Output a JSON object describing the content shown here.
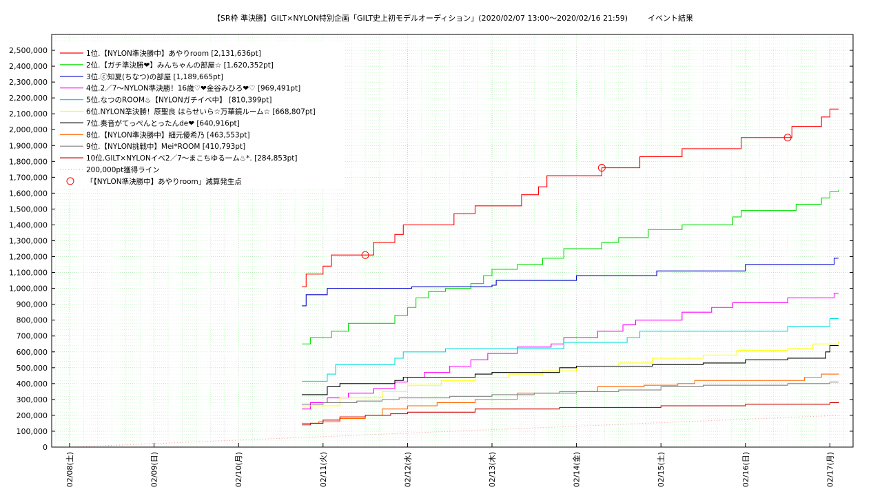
{
  "chart_data": {
    "type": "line",
    "title": "【SR枠 準決勝】GILT×NYLON特別企画「GILT史上初モデルオーディション」(2020/02/07 13:00〜2020/02/16 21:59)",
    "subtitle": "イベント結果",
    "xlabel": "",
    "ylabel": "",
    "x_ticks": [
      "02/08(土)",
      "02/09(日)",
      "02/10(月)",
      "02/11(火)",
      "02/12(水)",
      "02/13(木)",
      "02/14(金)",
      "02/15(土)",
      "02/16(日)",
      "02/17(月)"
    ],
    "xlim": [
      "2020-02-07 13:00",
      "2020-02-17 00:00"
    ],
    "ylim": [
      0,
      2600000
    ],
    "y_ticks": [
      "0",
      "100,000",
      "200,000",
      "300,000",
      "400,000",
      "500,000",
      "600,000",
      "700,000",
      "800,000",
      "900,000",
      "1,000,000",
      "1,100,000",
      "1,200,000",
      "1,300,000",
      "1,400,000",
      "1,500,000",
      "1,600,000",
      "1,700,000",
      "1,800,000",
      "1,900,000",
      "2,000,000",
      "2,100,000",
      "2,200,000",
      "2,300,000",
      "2,400,000",
      "2,500,000"
    ],
    "grid": true,
    "legend_position": "top-left",
    "series": [
      {
        "name": "1位.【NYLON準決勝中】あやりroom [2,131,636pt]",
        "color": "#ff0000",
        "points": [
          [
            2.75,
            1010000
          ],
          [
            2.8,
            1090000
          ],
          [
            3.0,
            1140000
          ],
          [
            3.1,
            1210000
          ],
          [
            3.5,
            1210000
          ],
          [
            3.6,
            1290000
          ],
          [
            3.85,
            1340000
          ],
          [
            3.95,
            1400000
          ],
          [
            4.5,
            1400000
          ],
          [
            4.55,
            1470000
          ],
          [
            4.75,
            1470000
          ],
          [
            4.8,
            1520000
          ],
          [
            5.3,
            1520000
          ],
          [
            5.35,
            1590000
          ],
          [
            5.55,
            1640000
          ],
          [
            5.65,
            1710000
          ],
          [
            6.2,
            1710000
          ],
          [
            6.3,
            1760000
          ],
          [
            6.7,
            1760000
          ],
          [
            6.75,
            1830000
          ],
          [
            7.2,
            1830000
          ],
          [
            7.25,
            1880000
          ],
          [
            7.9,
            1880000
          ],
          [
            7.95,
            1950000
          ],
          [
            8.5,
            1950000
          ],
          [
            8.55,
            2020000
          ],
          [
            8.8,
            2020000
          ],
          [
            8.9,
            2080000
          ],
          [
            9.0,
            2130000
          ],
          [
            9.1,
            2131636
          ]
        ]
      },
      {
        "name": "2位.【ガチ準決勝❤】みんちゃんの部屋☆ [1,620,352pt]",
        "color": "#00dd00",
        "points": [
          [
            2.75,
            650000
          ],
          [
            2.85,
            690000
          ],
          [
            3.1,
            730000
          ],
          [
            3.3,
            780000
          ],
          [
            3.75,
            780000
          ],
          [
            3.85,
            830000
          ],
          [
            4.0,
            880000
          ],
          [
            4.1,
            940000
          ],
          [
            4.25,
            980000
          ],
          [
            4.45,
            1000000
          ],
          [
            4.75,
            1030000
          ],
          [
            4.9,
            1080000
          ],
          [
            5.0,
            1120000
          ],
          [
            5.3,
            1150000
          ],
          [
            5.6,
            1190000
          ],
          [
            5.8,
            1190000
          ],
          [
            5.85,
            1250000
          ],
          [
            6.2,
            1250000
          ],
          [
            6.3,
            1290000
          ],
          [
            6.5,
            1320000
          ],
          [
            6.8,
            1320000
          ],
          [
            6.85,
            1370000
          ],
          [
            7.2,
            1370000
          ],
          [
            7.25,
            1400000
          ],
          [
            7.8,
            1400000
          ],
          [
            7.85,
            1450000
          ],
          [
            7.95,
            1490000
          ],
          [
            8.5,
            1490000
          ],
          [
            8.6,
            1530000
          ],
          [
            8.8,
            1530000
          ],
          [
            8.9,
            1570000
          ],
          [
            9.0,
            1610000
          ],
          [
            9.1,
            1620352
          ]
        ]
      },
      {
        "name": "3位.ⓒ知夏(ちなつ)の部屋 [1,189,665pt]",
        "color": "#0000cc",
        "points": [
          [
            2.75,
            890000
          ],
          [
            2.8,
            960000
          ],
          [
            3.0,
            960000
          ],
          [
            3.05,
            1000000
          ],
          [
            4.0,
            1000000
          ],
          [
            4.05,
            1010000
          ],
          [
            5.0,
            1020000
          ],
          [
            5.05,
            1050000
          ],
          [
            5.95,
            1050000
          ],
          [
            6.0,
            1080000
          ],
          [
            6.9,
            1080000
          ],
          [
            6.95,
            1110000
          ],
          [
            7.95,
            1110000
          ],
          [
            8.0,
            1150000
          ],
          [
            9.0,
            1150000
          ],
          [
            9.05,
            1190000
          ],
          [
            9.1,
            1189665
          ]
        ]
      },
      {
        "name": "4位.2／7〜NYLON準決勝！16歳♡❤金谷みひろ❤♡ [969,491pt]",
        "color": "#ff00ff",
        "points": [
          [
            2.75,
            240000
          ],
          [
            2.85,
            280000
          ],
          [
            3.05,
            310000
          ],
          [
            3.3,
            340000
          ],
          [
            3.6,
            370000
          ],
          [
            3.85,
            410000
          ],
          [
            4.0,
            440000
          ],
          [
            4.2,
            470000
          ],
          [
            4.5,
            510000
          ],
          [
            4.75,
            550000
          ],
          [
            4.95,
            590000
          ],
          [
            5.3,
            630000
          ],
          [
            5.7,
            650000
          ],
          [
            5.85,
            690000
          ],
          [
            6.25,
            730000
          ],
          [
            6.55,
            770000
          ],
          [
            6.7,
            800000
          ],
          [
            7.15,
            800000
          ],
          [
            7.25,
            850000
          ],
          [
            7.6,
            880000
          ],
          [
            7.85,
            910000
          ],
          [
            8.4,
            910000
          ],
          [
            8.5,
            940000
          ],
          [
            9.0,
            940000
          ],
          [
            9.05,
            970000
          ],
          [
            9.1,
            969491
          ]
        ]
      },
      {
        "name": "5位.なつのROOM♨【NYLONガチイベ中】 [810,399pt]",
        "color": "#00dddd",
        "points": [
          [
            2.75,
            415000
          ],
          [
            2.95,
            415000
          ],
          [
            3.05,
            460000
          ],
          [
            3.15,
            520000
          ],
          [
            3.75,
            520000
          ],
          [
            3.85,
            560000
          ],
          [
            3.95,
            600000
          ],
          [
            4.35,
            600000
          ],
          [
            4.45,
            620000
          ],
          [
            5.8,
            620000
          ],
          [
            5.85,
            660000
          ],
          [
            6.5,
            660000
          ],
          [
            6.6,
            690000
          ],
          [
            6.75,
            730000
          ],
          [
            7.3,
            730000
          ],
          [
            7.4,
            730000
          ],
          [
            8.5,
            760000
          ],
          [
            8.95,
            760000
          ],
          [
            9.0,
            810000
          ],
          [
            9.1,
            810399
          ]
        ]
      },
      {
        "name": "6位.NYLON準決勝！原聖良 はらせいら☆万華鏡ルーム☆ [668,807pt]",
        "color": "#ffff00",
        "points": [
          [
            2.75,
            260000
          ],
          [
            3.2,
            310000
          ],
          [
            3.7,
            350000
          ],
          [
            4.0,
            390000
          ],
          [
            4.4,
            420000
          ],
          [
            4.8,
            440000
          ],
          [
            5.2,
            460000
          ],
          [
            5.6,
            480000
          ],
          [
            6.0,
            510000
          ],
          [
            6.5,
            530000
          ],
          [
            6.9,
            560000
          ],
          [
            7.5,
            580000
          ],
          [
            7.9,
            610000
          ],
          [
            8.5,
            620000
          ],
          [
            8.8,
            650000
          ],
          [
            9.1,
            668807
          ]
        ]
      },
      {
        "name": "7位.奏音がてっぺんとったんde❤ [640,916pt]",
        "color": "#000000",
        "points": [
          [
            2.75,
            330000
          ],
          [
            2.95,
            330000
          ],
          [
            3.05,
            380000
          ],
          [
            3.2,
            400000
          ],
          [
            3.85,
            420000
          ],
          [
            3.95,
            440000
          ],
          [
            4.6,
            440000
          ],
          [
            4.8,
            460000
          ],
          [
            5.0,
            470000
          ],
          [
            5.5,
            470000
          ],
          [
            5.8,
            500000
          ],
          [
            6.0,
            510000
          ],
          [
            6.7,
            510000
          ],
          [
            6.9,
            520000
          ],
          [
            7.4,
            520000
          ],
          [
            7.5,
            530000
          ],
          [
            7.9,
            530000
          ],
          [
            8.0,
            550000
          ],
          [
            8.5,
            560000
          ],
          [
            8.85,
            560000
          ],
          [
            8.95,
            600000
          ],
          [
            9.0,
            640000
          ],
          [
            9.1,
            640916
          ]
        ]
      },
      {
        "name": "8位.【NYLON準決勝中】細元優希乃 [463,553pt]",
        "color": "#ff6600",
        "points": [
          [
            2.75,
            150000
          ],
          [
            2.95,
            160000
          ],
          [
            3.2,
            180000
          ],
          [
            3.5,
            200000
          ],
          [
            3.7,
            240000
          ],
          [
            4.0,
            260000
          ],
          [
            4.35,
            280000
          ],
          [
            4.8,
            300000
          ],
          [
            5.3,
            340000
          ],
          [
            5.8,
            350000
          ],
          [
            6.25,
            380000
          ],
          [
            6.8,
            390000
          ],
          [
            7.2,
            400000
          ],
          [
            7.4,
            420000
          ],
          [
            8.5,
            420000
          ],
          [
            8.7,
            440000
          ],
          [
            8.9,
            460000
          ],
          [
            9.1,
            463553
          ]
        ]
      },
      {
        "name": "9位.【NYLON挑戦中】Mei*ROOM [410,793pt]",
        "color": "#808080",
        "points": [
          [
            2.75,
            270000
          ],
          [
            3.0,
            280000
          ],
          [
            3.4,
            290000
          ],
          [
            3.7,
            300000
          ],
          [
            3.9,
            310000
          ],
          [
            4.0,
            310000
          ],
          [
            4.5,
            320000
          ],
          [
            5.0,
            330000
          ],
          [
            5.5,
            340000
          ],
          [
            6.0,
            350000
          ],
          [
            6.5,
            360000
          ],
          [
            7.0,
            380000
          ],
          [
            7.5,
            390000
          ],
          [
            8.0,
            390000
          ],
          [
            8.5,
            400000
          ],
          [
            9.0,
            410000
          ],
          [
            9.1,
            410793
          ]
        ]
      },
      {
        "name": "10位.GILT×NYLONイベ2／7〜まこちゆる一ム♨*. [284,853pt]",
        "color": "#cc0000",
        "points": [
          [
            2.75,
            140000
          ],
          [
            2.85,
            150000
          ],
          [
            3.0,
            170000
          ],
          [
            3.2,
            190000
          ],
          [
            3.5,
            200000
          ],
          [
            3.8,
            210000
          ],
          [
            4.0,
            220000
          ],
          [
            4.6,
            220000
          ],
          [
            4.8,
            240000
          ],
          [
            5.4,
            240000
          ],
          [
            5.8,
            250000
          ],
          [
            6.6,
            250000
          ],
          [
            7.0,
            260000
          ],
          [
            7.8,
            260000
          ],
          [
            8.0,
            270000
          ],
          [
            8.9,
            270000
          ],
          [
            9.0,
            280000
          ],
          [
            9.1,
            284853
          ]
        ]
      },
      {
        "name": "200,000pt獲得ライン",
        "color": "#ff9999",
        "dashed": true,
        "points": [
          [
            0,
            0
          ],
          [
            9.1,
            200000
          ]
        ]
      }
    ],
    "markers": {
      "name": "「【NYLON準決勝中】あやりroom」減算発生点",
      "color": "#ff0000",
      "points": [
        [
          3.5,
          1210000
        ],
        [
          6.3,
          1760000
        ],
        [
          8.5,
          1950000
        ]
      ]
    }
  }
}
